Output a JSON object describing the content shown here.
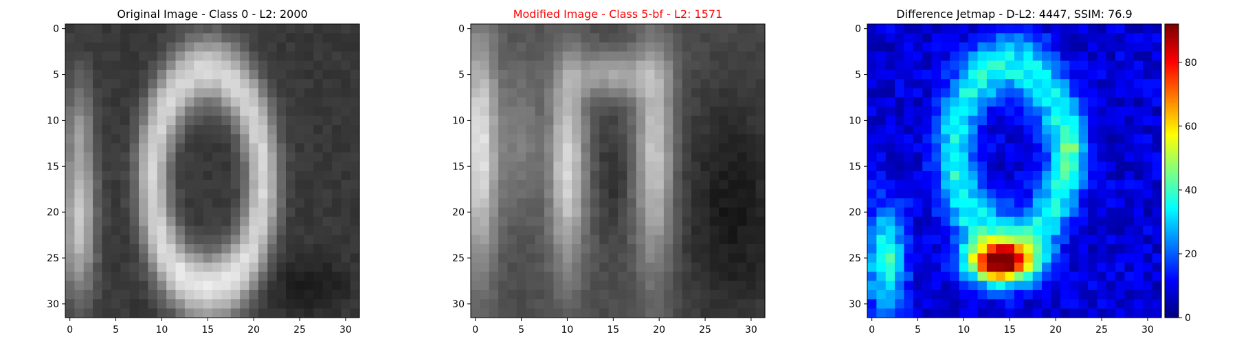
{
  "chart_data": [
    {
      "type": "heatmap",
      "title": "Original Image - Class 0 - L2: 2000",
      "title_color": "#000000",
      "colormap": "gray",
      "image_size": [
        32,
        32
      ],
      "xlim": [
        -0.5,
        31.5
      ],
      "ylim": [
        31.5,
        -0.5
      ],
      "x_ticks": [
        0,
        5,
        10,
        15,
        20,
        25,
        30
      ],
      "y_ticks": [
        0,
        5,
        10,
        15,
        20,
        25,
        30
      ],
      "content": "handwritten-style digit zero: bright elliptical ring centered at column 15 (columns 8-22, rows 3-29), dark hollow center, a bright vertical stroke at columns 0-2 on the left edge, dark background"
    },
    {
      "type": "heatmap",
      "title": "Modified Image - Class 5-bf - L2: 1571",
      "title_color": "#ff0000",
      "colormap": "gray",
      "image_size": [
        32,
        32
      ],
      "xlim": [
        -0.5,
        31.5
      ],
      "ylim": [
        31.5,
        -0.5
      ],
      "x_ticks": [
        0,
        5,
        10,
        15,
        20,
        25,
        30
      ],
      "y_ticks": [
        0,
        5,
        10,
        15,
        20,
        25,
        30
      ],
      "content": "blurrier perturbed version of the digit zero: two bright vertical strokes at columns 9-11 and 18-21, darker gap at column 15, bright left edge strip at columns 0-2, dark right side"
    },
    {
      "type": "heatmap",
      "title": "Difference Jetmap - D-L2: 4447, SSIM: 76.9",
      "title_color": "#000000",
      "colormap": "jet",
      "image_size": [
        32,
        32
      ],
      "xlim": [
        -0.5,
        31.5
      ],
      "ylim": [
        31.5,
        -0.5
      ],
      "x_ticks": [
        0,
        5,
        10,
        15,
        20,
        25,
        30
      ],
      "y_ticks": [
        0,
        5,
        10,
        15,
        20,
        25,
        30
      ],
      "colorbar": {
        "vmin": 0,
        "vmax": 92,
        "ticks": [
          0,
          20,
          40,
          60,
          80
        ]
      },
      "content": "mostly dark blue difference map with a cyan ring following the zero outline, a hot red spot around rows 24-27 columns 12-16 (max ~90), cyan/green patches at the lower-left (rows 21-28, columns 0-3)"
    }
  ]
}
